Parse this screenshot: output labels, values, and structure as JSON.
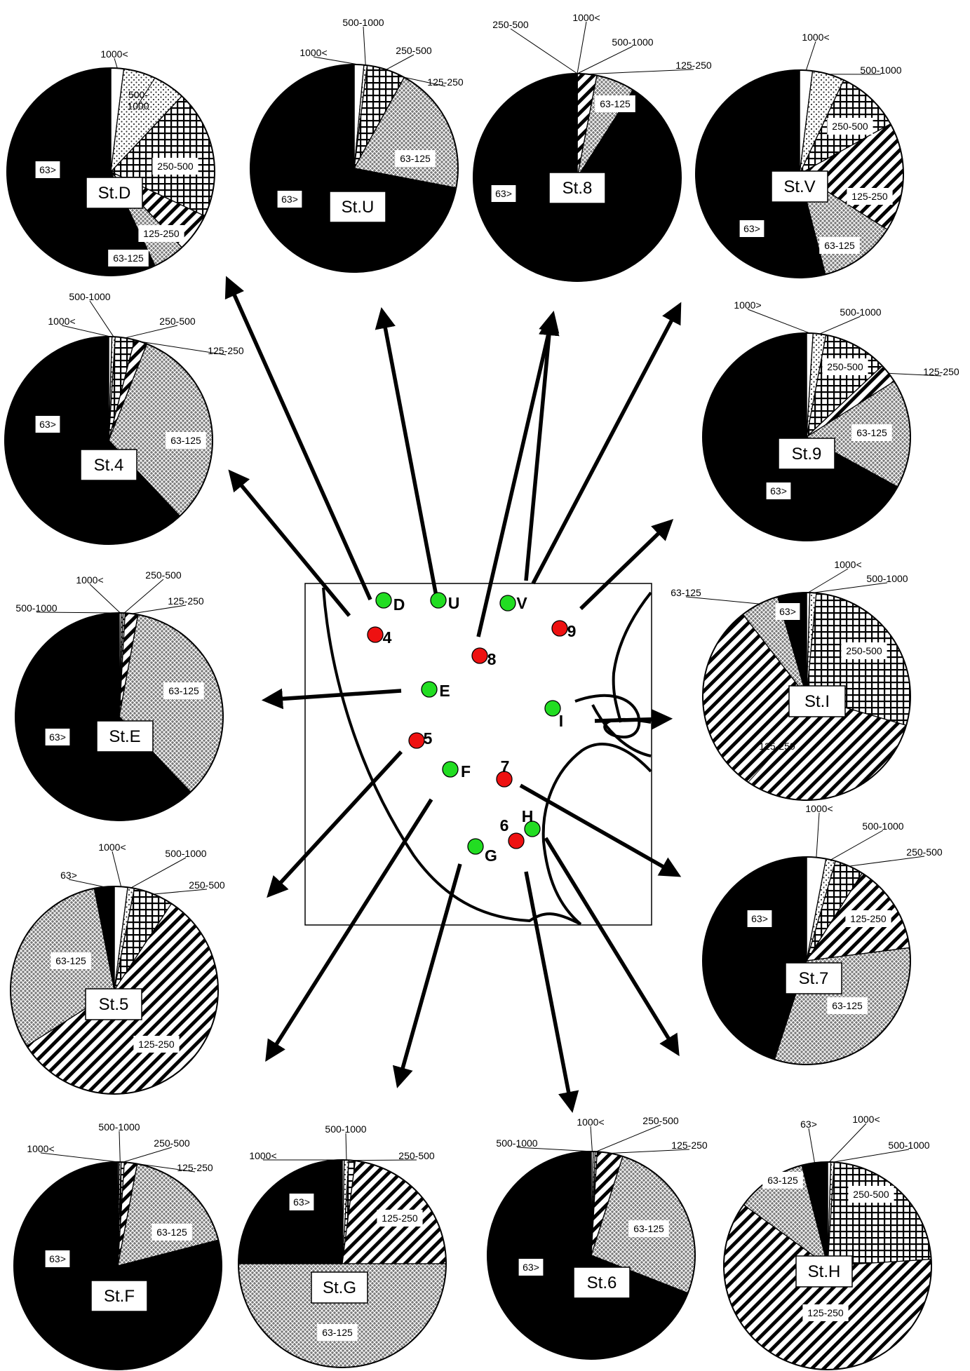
{
  "categories": [
    "1000<",
    "500-1000",
    "250-500",
    "125-250",
    "63-125",
    "63>"
  ],
  "sites": {
    "green": [
      "D",
      "U",
      "V",
      "E",
      "I",
      "F",
      "H",
      "G"
    ],
    "red": [
      "4",
      "8",
      "9",
      "5",
      "7",
      "6"
    ]
  },
  "chart_data": [
    {
      "type": "pie",
      "station": "St.D",
      "values": [
        2,
        10,
        20,
        6,
        5,
        57
      ],
      "labels": {
        "1000<": "1000<",
        "500-1000": "500-\n1000",
        "250-500": "250-500",
        "125-250": "125-250",
        "63-125": "63-125",
        "63>": "63>"
      }
    },
    {
      "type": "pie",
      "station": "St.U",
      "values": [
        1.5,
        0.5,
        6,
        0.01,
        20,
        72
      ],
      "labels": {
        "1000<": "1000<",
        "500-1000": "500-1000",
        "250-500": "250-500",
        "125-250": "125-250",
        "63-125": "63-125",
        "63>": "63>"
      }
    },
    {
      "type": "pie",
      "station": "St.8",
      "values": [
        0.01,
        0.01,
        0.01,
        3,
        6,
        91
      ],
      "labels": {
        "1000<": "1000<",
        "500-1000": "500-1000",
        "250-500": "250-500",
        "125-250": "125-250",
        "63-125": "63-125",
        "63>": "63>"
      }
    },
    {
      "type": "pie",
      "station": "St.V",
      "values": [
        2,
        5,
        10,
        17,
        12,
        54
      ],
      "labels": {
        "1000<": "1000<",
        "500-1000": "500-1000",
        "250-500": "250-500",
        "125-250": "125-250",
        "63-125": "63-125",
        "63>": "63>"
      }
    },
    {
      "type": "pie",
      "station": "St.4",
      "values": [
        0.5,
        0.5,
        3,
        2,
        32,
        62
      ],
      "labels": {
        "1000<": "1000<",
        "500-1000": "500-1000",
        "250-500": "250-500",
        "125-250": "125-250",
        "63-125": "63-125",
        "63>": "63>"
      }
    },
    {
      "type": "pie",
      "station": "St.9",
      "values": [
        1,
        2,
        10,
        3,
        17,
        67
      ],
      "labels": {
        "1000<": "1000>",
        "500-1000": "500-1000",
        "250-500": "250-500",
        "125-250": "125-250",
        "63-125": "63-125",
        "63>": "63>"
      }
    },
    {
      "type": "pie",
      "station": "St.E",
      "values": [
        0.3,
        0.3,
        0.3,
        2,
        35,
        62
      ],
      "labels": {
        "1000<": "1000<",
        "500-1000": "500-1000",
        "250-500": "250-500",
        "125-250": "125-250",
        "63-125": "63-125",
        "63>": "63>"
      }
    },
    {
      "type": "pie",
      "station": "St.I",
      "values": [
        0.5,
        1,
        28,
        60,
        6,
        4.5
      ],
      "labels": {
        "1000<": "1000<",
        "500-1000": "500-1000",
        "250-500": "250-500",
        "125-250": "125-250",
        "63-125": "63-125",
        "63>": "63>"
      }
    },
    {
      "type": "pie",
      "station": "St.5",
      "values": [
        2,
        1,
        6,
        55,
        30,
        3
      ],
      "labels": {
        "1000<": "1000<",
        "500-1000": "500-1000",
        "250-500": "250-500",
        "125-250": "125-250",
        "63-125": "63-125",
        "63>": "63>"
      }
    },
    {
      "type": "pie",
      "station": "St.7",
      "values": [
        3,
        1.5,
        4.5,
        14,
        32,
        45
      ],
      "labels": {
        "1000<": "1000<",
        "500-1000": "500-1000",
        "250-500": "250-500",
        "125-250": "125-250",
        "63-125": "63-125",
        "63>": "63>"
      }
    },
    {
      "type": "pie",
      "station": "St.F",
      "values": [
        0.2,
        0.3,
        0.5,
        2,
        18,
        79
      ],
      "labels": {
        "1000<": "1000<",
        "500-1000": "500-1000",
        "250-500": "250-500",
        "125-250": "125-250",
        "63-125": "63-125",
        "63>": "63>"
      }
    },
    {
      "type": "pie",
      "station": "St.G",
      "values": [
        0.3,
        0.7,
        1,
        23,
        50,
        25
      ],
      "labels": {
        "1000<": "1000<",
        "500-1000": "500-1000",
        "250-500": "250-500",
        "125-250": "125-250",
        "63-125": "63-125",
        "63>": "63>"
      }
    },
    {
      "type": "pie",
      "station": "St.6",
      "values": [
        0.3,
        0.3,
        0.3,
        4,
        26,
        69
      ],
      "labels": {
        "1000<": "1000<",
        "500-1000": "500-1000",
        "250-500": "250-500",
        "125-250": "125-250",
        "63-125": "63-125",
        "63>": "63>"
      }
    },
    {
      "type": "pie",
      "station": "St.H",
      "values": [
        0.5,
        0.5,
        23,
        61,
        11,
        4
      ],
      "labels": {
        "1000<": "1000<",
        "500-1000": "500-1000",
        "250-500": "250-500",
        "125-250": "125-250",
        "63-125": "63-125",
        "63>": "63>"
      }
    }
  ]
}
